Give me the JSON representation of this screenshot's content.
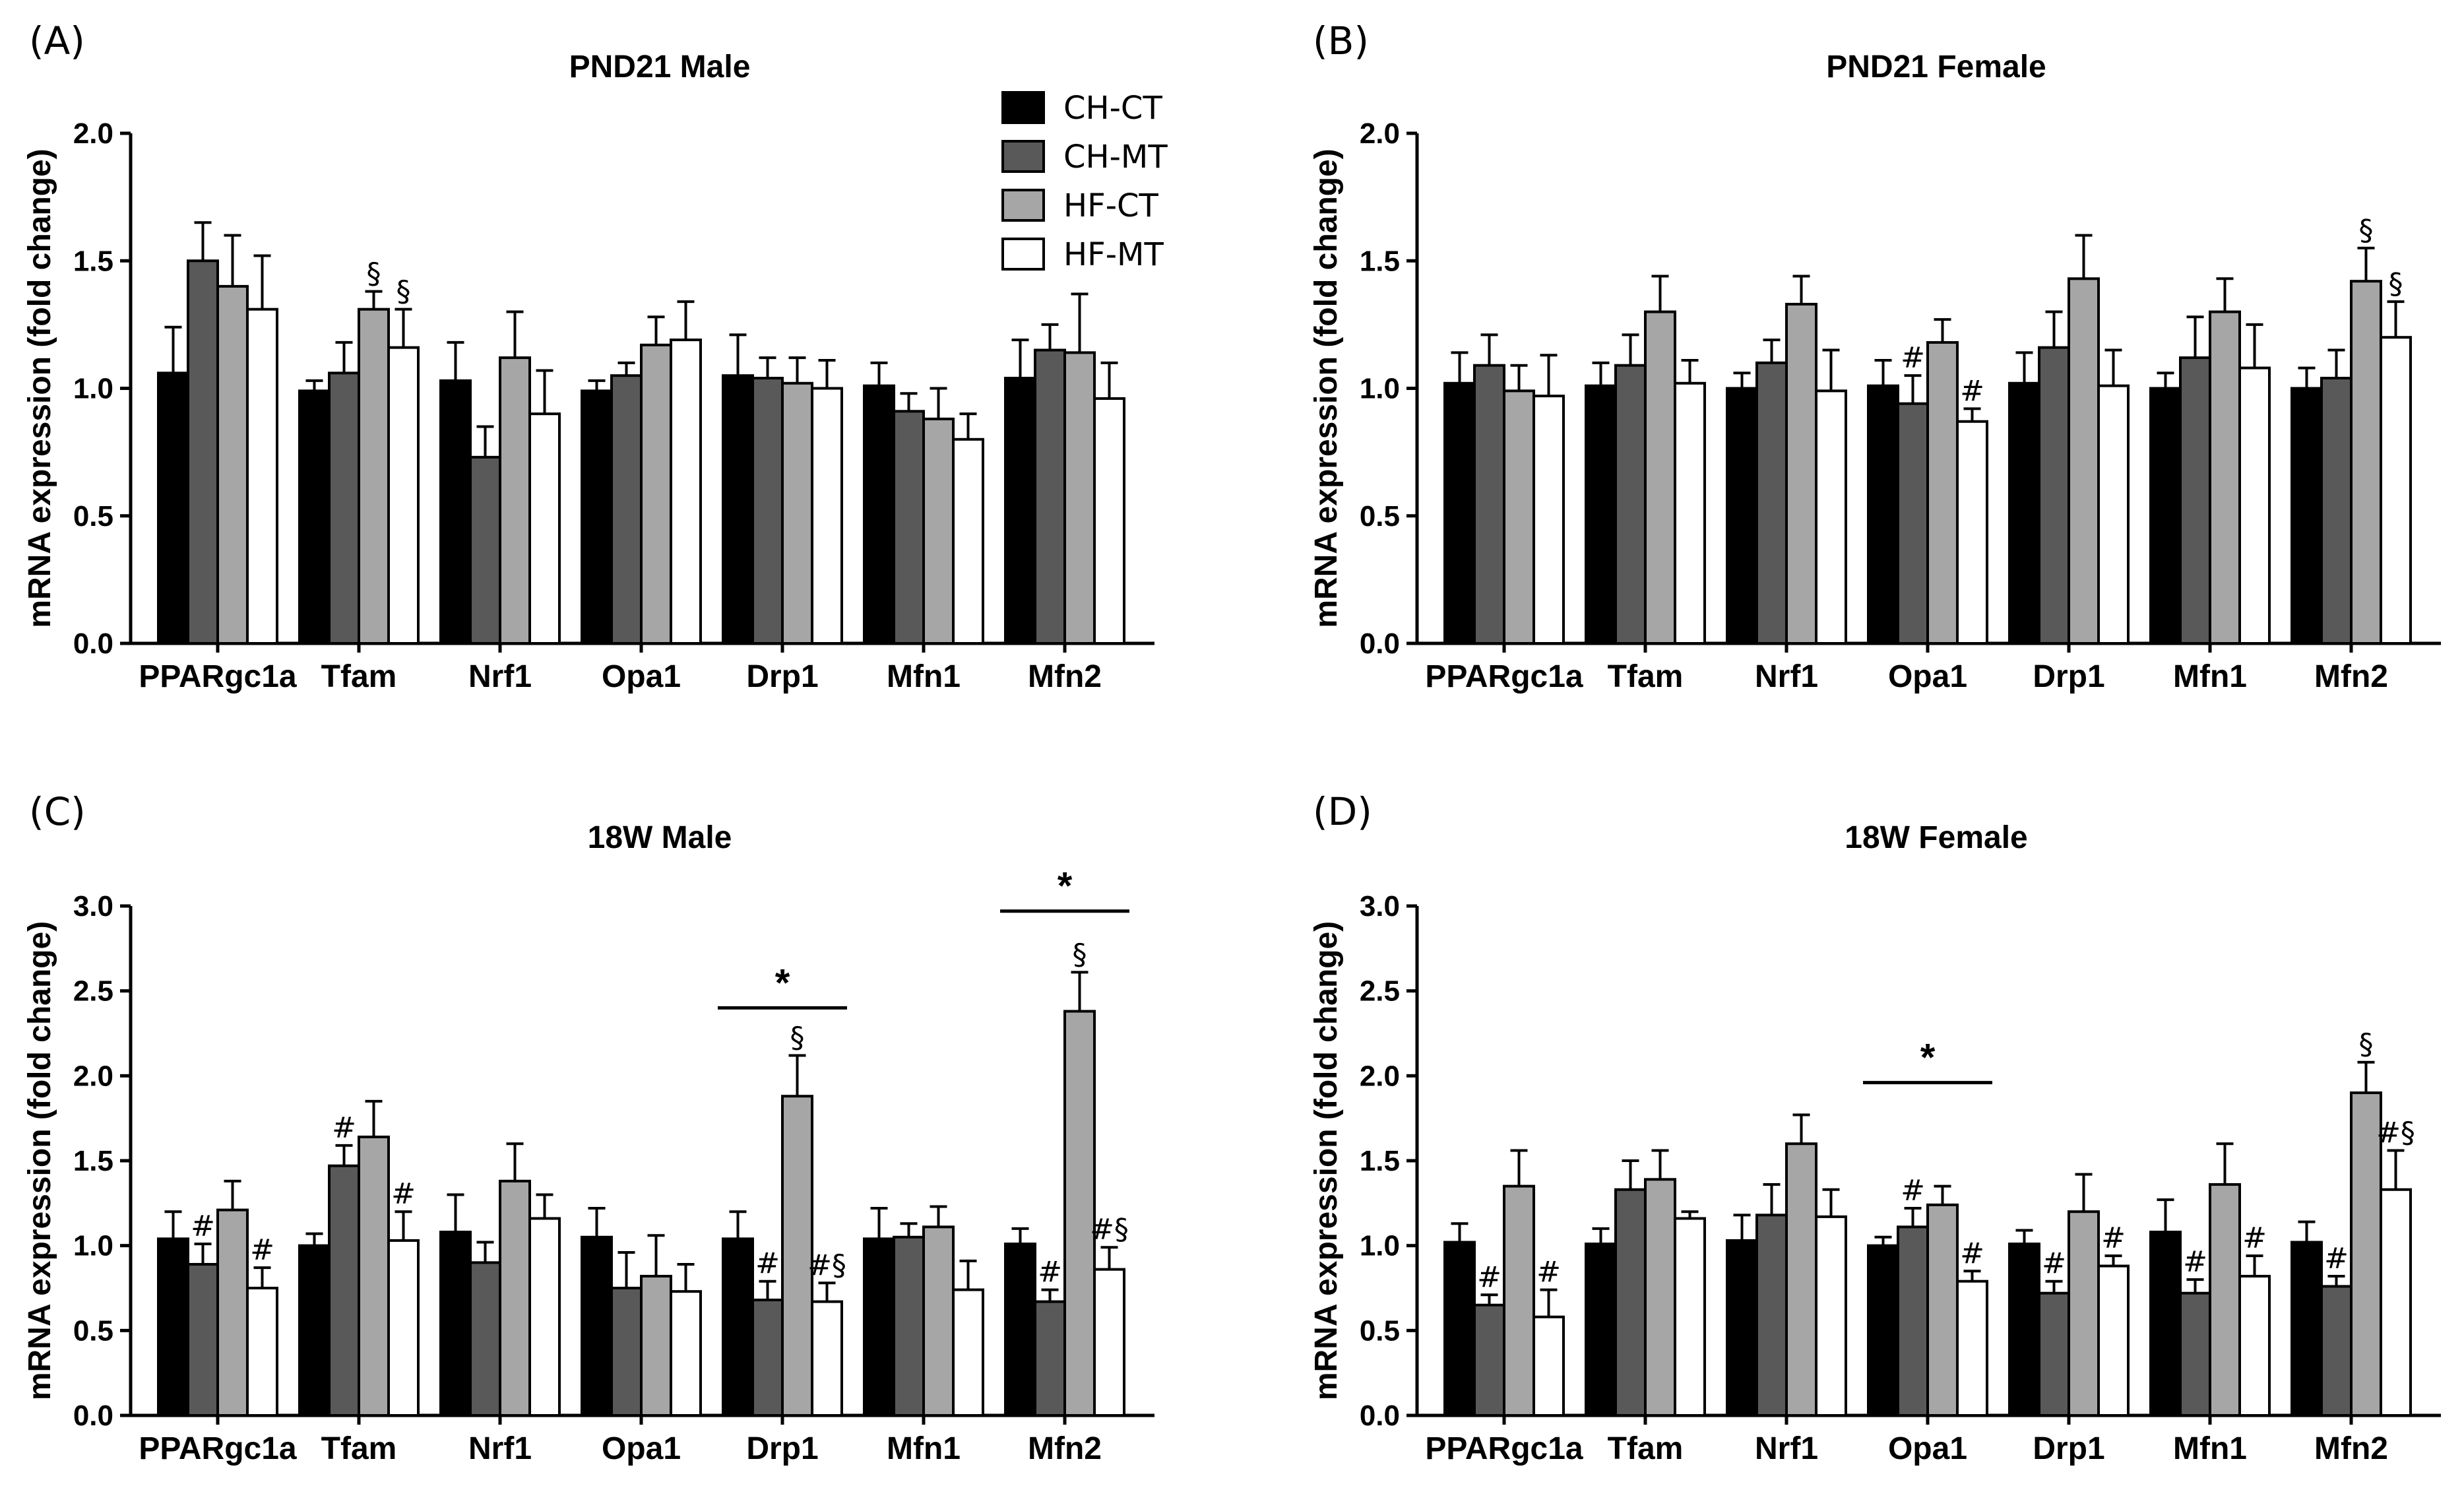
{
  "figure": {
    "legend": [
      "CH-CT",
      "CH-MT",
      "HF-CT",
      "HF-MT"
    ]
  },
  "colors": {
    "CH-CT": "#000000",
    "CH-MT": "#595959",
    "HF-CT": "#a6a6a6",
    "HF-MT": "#ffffff"
  },
  "chart_data": [
    {
      "panel": "(A)",
      "type": "bar",
      "title": "PND21 Male",
      "ylabel": "mRNA expression (fold change)",
      "ylim": [
        0,
        2.0
      ],
      "yticks": [
        "0.0",
        "0.5",
        "1.0",
        "1.5",
        "2.0"
      ],
      "categories": [
        "PPARgc1a",
        "Tfam",
        "Nrf1",
        "Opa1",
        "Drp1",
        "Mfn1",
        "Mfn2"
      ],
      "series": [
        {
          "name": "CH-CT",
          "values": [
            1.06,
            0.99,
            1.03,
            0.99,
            1.05,
            1.01,
            1.04
          ],
          "errors": [
            0.18,
            0.04,
            0.15,
            0.04,
            0.16,
            0.09,
            0.15
          ]
        },
        {
          "name": "CH-MT",
          "values": [
            1.5,
            1.06,
            0.73,
            1.05,
            1.04,
            0.91,
            1.15
          ],
          "errors": [
            0.15,
            0.12,
            0.12,
            0.05,
            0.08,
            0.07,
            0.1
          ]
        },
        {
          "name": "HF-CT",
          "values": [
            1.4,
            1.31,
            1.12,
            1.17,
            1.02,
            0.88,
            1.14
          ],
          "errors": [
            0.2,
            0.07,
            0.18,
            0.11,
            0.1,
            0.12,
            0.23
          ]
        },
        {
          "name": "HF-MT",
          "values": [
            1.31,
            1.16,
            0.9,
            1.19,
            1.0,
            0.8,
            0.96
          ],
          "errors": [
            0.21,
            0.15,
            0.17,
            0.15,
            0.11,
            0.1,
            0.14
          ]
        }
      ],
      "annotations": [
        {
          "category": "Tfam",
          "series": "HF-CT",
          "text": "§"
        },
        {
          "category": "Tfam",
          "series": "HF-MT",
          "text": "§"
        }
      ],
      "brackets": []
    },
    {
      "panel": "(B)",
      "type": "bar",
      "title": "PND21 Female",
      "ylabel": "mRNA expression (fold change)",
      "ylim": [
        0,
        2.0
      ],
      "yticks": [
        "0.0",
        "0.5",
        "1.0",
        "1.5",
        "2.0"
      ],
      "categories": [
        "PPARgc1a",
        "Tfam",
        "Nrf1",
        "Opa1",
        "Drp1",
        "Mfn1",
        "Mfn2"
      ],
      "series": [
        {
          "name": "CH-CT",
          "values": [
            1.02,
            1.01,
            1.0,
            1.01,
            1.02,
            1.0,
            1.0
          ],
          "errors": [
            0.12,
            0.09,
            0.06,
            0.1,
            0.12,
            0.06,
            0.08
          ]
        },
        {
          "name": "CH-MT",
          "values": [
            1.09,
            1.09,
            1.1,
            0.94,
            1.16,
            1.12,
            1.04
          ],
          "errors": [
            0.12,
            0.12,
            0.09,
            0.11,
            0.14,
            0.16,
            0.11
          ]
        },
        {
          "name": "HF-CT",
          "values": [
            0.99,
            1.3,
            1.33,
            1.18,
            1.43,
            1.3,
            1.42
          ],
          "errors": [
            0.1,
            0.14,
            0.11,
            0.09,
            0.17,
            0.13,
            0.13
          ]
        },
        {
          "name": "HF-MT",
          "values": [
            0.97,
            1.02,
            0.99,
            0.87,
            1.01,
            1.08,
            1.2
          ],
          "errors": [
            0.16,
            0.09,
            0.16,
            0.05,
            0.14,
            0.17,
            0.14
          ]
        }
      ],
      "annotations": [
        {
          "category": "Opa1",
          "series": "CH-MT",
          "text": "#"
        },
        {
          "category": "Opa1",
          "series": "HF-MT",
          "text": "#"
        },
        {
          "category": "Mfn2",
          "series": "HF-CT",
          "text": "§"
        },
        {
          "category": "Mfn2",
          "series": "HF-MT",
          "text": "§"
        }
      ],
      "brackets": []
    },
    {
      "panel": "(C)",
      "type": "bar",
      "title": "18W Male",
      "ylabel": "mRNA expression (fold change)",
      "ylim": [
        0,
        3.0
      ],
      "yticks": [
        "0.0",
        "0.5",
        "1.0",
        "1.5",
        "2.0",
        "2.5",
        "3.0"
      ],
      "categories": [
        "PPARgc1a",
        "Tfam",
        "Nrf1",
        "Opa1",
        "Drp1",
        "Mfn1",
        "Mfn2"
      ],
      "series": [
        {
          "name": "CH-CT",
          "values": [
            1.04,
            1.0,
            1.08,
            1.05,
            1.04,
            1.04,
            1.01
          ],
          "errors": [
            0.16,
            0.07,
            0.22,
            0.17,
            0.16,
            0.18,
            0.09
          ]
        },
        {
          "name": "CH-MT",
          "values": [
            0.89,
            1.47,
            0.9,
            0.75,
            0.68,
            1.05,
            0.67
          ],
          "errors": [
            0.12,
            0.12,
            0.12,
            0.21,
            0.11,
            0.08,
            0.07
          ]
        },
        {
          "name": "HF-CT",
          "values": [
            1.21,
            1.64,
            1.38,
            0.82,
            1.88,
            1.11,
            2.38
          ],
          "errors": [
            0.17,
            0.21,
            0.22,
            0.24,
            0.24,
            0.12,
            0.23
          ]
        },
        {
          "name": "HF-MT",
          "values": [
            0.75,
            1.03,
            1.16,
            0.73,
            0.67,
            0.74,
            0.86
          ],
          "errors": [
            0.12,
            0.17,
            0.14,
            0.16,
            0.11,
            0.17,
            0.13
          ]
        }
      ],
      "annotations": [
        {
          "category": "PPARgc1a",
          "series": "CH-MT",
          "text": "#"
        },
        {
          "category": "PPARgc1a",
          "series": "HF-MT",
          "text": "#"
        },
        {
          "category": "Tfam",
          "series": "CH-MT",
          "text": "#"
        },
        {
          "category": "Tfam",
          "series": "HF-MT",
          "text": "#"
        },
        {
          "category": "Drp1",
          "series": "CH-MT",
          "text": "#"
        },
        {
          "category": "Drp1",
          "series": "HF-CT",
          "text": "§"
        },
        {
          "category": "Drp1",
          "series": "HF-MT",
          "text": "#§"
        },
        {
          "category": "Mfn2",
          "series": "CH-MT",
          "text": "#"
        },
        {
          "category": "Mfn2",
          "series": "HF-CT",
          "text": "§"
        },
        {
          "category": "Mfn2",
          "series": "HF-MT",
          "text": "#§"
        }
      ],
      "brackets": [
        {
          "category": "Drp1",
          "text": "*",
          "y": 2.4
        },
        {
          "category": "Mfn2",
          "text": "*",
          "y": 2.97
        }
      ]
    },
    {
      "panel": "(D)",
      "type": "bar",
      "title": "18W Female",
      "ylabel": "mRNA expression (fold change)",
      "ylim": [
        0,
        3.0
      ],
      "yticks": [
        "0.0",
        "0.5",
        "1.0",
        "1.5",
        "2.0",
        "2.5",
        "3.0"
      ],
      "categories": [
        "PPARgc1a",
        "Tfam",
        "Nrf1",
        "Opa1",
        "Drp1",
        "Mfn1",
        "Mfn2"
      ],
      "series": [
        {
          "name": "CH-CT",
          "values": [
            1.02,
            1.01,
            1.03,
            1.0,
            1.01,
            1.08,
            1.02
          ],
          "errors": [
            0.11,
            0.09,
            0.15,
            0.05,
            0.08,
            0.19,
            0.12
          ]
        },
        {
          "name": "CH-MT",
          "values": [
            0.65,
            1.33,
            1.18,
            1.11,
            0.72,
            0.72,
            0.76
          ],
          "errors": [
            0.06,
            0.17,
            0.18,
            0.11,
            0.07,
            0.08,
            0.06
          ]
        },
        {
          "name": "HF-CT",
          "values": [
            1.35,
            1.39,
            1.6,
            1.24,
            1.2,
            1.36,
            1.9
          ],
          "errors": [
            0.21,
            0.17,
            0.17,
            0.11,
            0.22,
            0.24,
            0.18
          ]
        },
        {
          "name": "HF-MT",
          "values": [
            0.58,
            1.16,
            1.17,
            0.79,
            0.88,
            0.82,
            1.33
          ],
          "errors": [
            0.16,
            0.04,
            0.16,
            0.06,
            0.06,
            0.12,
            0.23
          ]
        }
      ],
      "annotations": [
        {
          "category": "PPARgc1a",
          "series": "CH-MT",
          "text": "#"
        },
        {
          "category": "PPARgc1a",
          "series": "HF-MT",
          "text": "#"
        },
        {
          "category": "Opa1",
          "series": "CH-MT",
          "text": "#"
        },
        {
          "category": "Opa1",
          "series": "HF-MT",
          "text": "#"
        },
        {
          "category": "Drp1",
          "series": "CH-MT",
          "text": "#"
        },
        {
          "category": "Drp1",
          "series": "HF-MT",
          "text": "#"
        },
        {
          "category": "Mfn1",
          "series": "CH-MT",
          "text": "#"
        },
        {
          "category": "Mfn1",
          "series": "HF-MT",
          "text": "#"
        },
        {
          "category": "Mfn2",
          "series": "CH-MT",
          "text": "#"
        },
        {
          "category": "Mfn2",
          "series": "HF-CT",
          "text": "§"
        },
        {
          "category": "Mfn2",
          "series": "HF-MT",
          "text": "#§"
        }
      ],
      "brackets": [
        {
          "category": "Opa1",
          "text": "*",
          "y": 1.96
        }
      ]
    }
  ]
}
